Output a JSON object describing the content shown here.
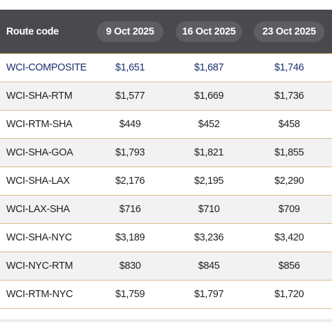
{
  "table": {
    "header": {
      "route_label": "Route code",
      "dates": [
        "9 Oct 2025",
        "16 Oct 2025",
        "23 Oct 2025"
      ]
    },
    "rows": [
      {
        "route": "WCI-COMPOSITE",
        "values": [
          "$1,651",
          "$1,687",
          "$1,746"
        ]
      },
      {
        "route": "WCI-SHA-RTM",
        "values": [
          "$1,577",
          "$1,669",
          "$1,736"
        ]
      },
      {
        "route": "WCI-RTM-SHA",
        "values": [
          "$449",
          "$452",
          "$458"
        ]
      },
      {
        "route": "WCI-SHA-GOA",
        "values": [
          "$1,793",
          "$1,821",
          "$1,855"
        ]
      },
      {
        "route": "WCI-SHA-LAX",
        "values": [
          "$2,176",
          "$2,195",
          "$2,290"
        ]
      },
      {
        "route": "WCI-LAX-SHA",
        "values": [
          "$716",
          "$710",
          "$709"
        ]
      },
      {
        "route": "WCI-SHA-NYC",
        "values": [
          "$3,189",
          "$3,236",
          "$3,420"
        ]
      },
      {
        "route": "WCI-NYC-RTM",
        "values": [
          "$830",
          "$845",
          "$856"
        ]
      },
      {
        "route": "WCI-RTM-NYC",
        "values": [
          "$1,759",
          "$1,797",
          "$1,720"
        ]
      }
    ]
  },
  "colors": {
    "header_bg": "#4a4a4e",
    "pill_bg": "#5e5e62",
    "highlight_text": "#1a2f6e",
    "divider": "#d6c08a"
  }
}
